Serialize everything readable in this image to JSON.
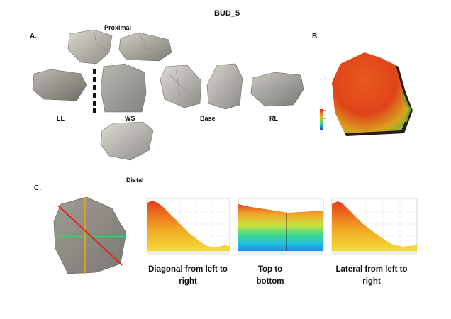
{
  "title": "BUD_5",
  "panels": {
    "a": "A.",
    "b": "B.",
    "c": "C."
  },
  "views": {
    "proximal": "Proximal",
    "ll": "LL",
    "ws": "WS",
    "base": "Base",
    "rl": "RL",
    "distal": "Distal"
  },
  "profiles": [
    {
      "caption": "Diagonal from left to right"
    },
    {
      "caption": "Top to bottom"
    },
    {
      "caption": "Lateral from left to right"
    }
  ]
}
